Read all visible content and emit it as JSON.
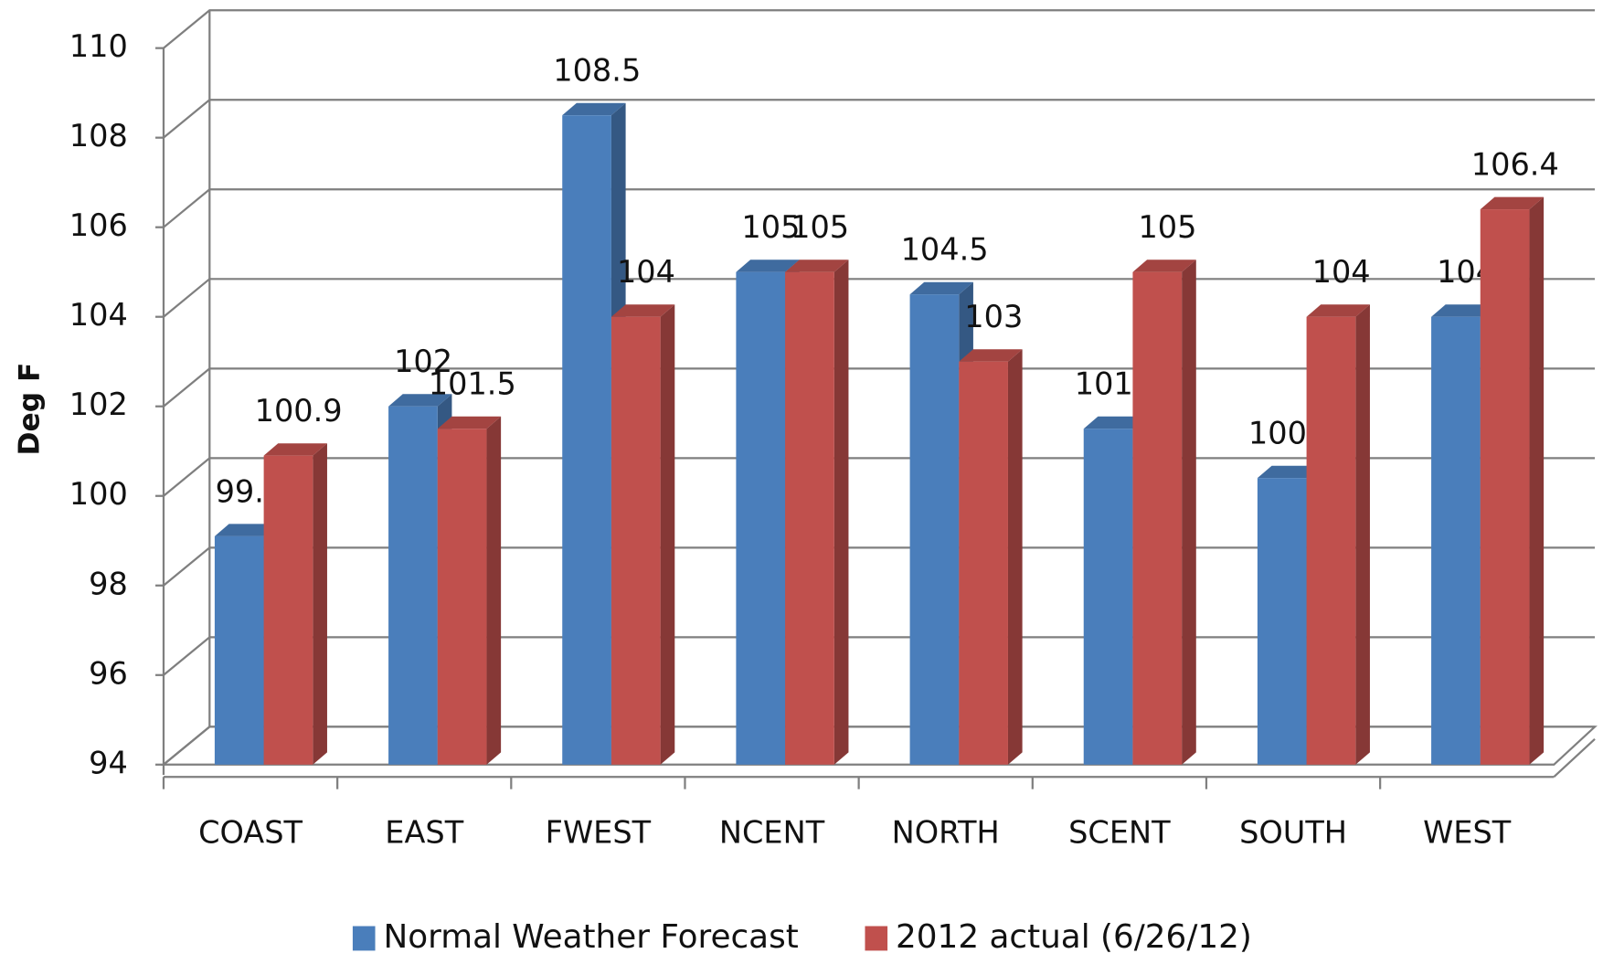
{
  "chart_data": {
    "type": "bar3d",
    "y_label": "Deg F",
    "categories": [
      "COAST",
      "EAST",
      "FWEST",
      "NCENT",
      "NORTH",
      "SCENT",
      "SOUTH",
      "WEST"
    ],
    "series": [
      {
        "name": "Normal Weather Forecast",
        "color": "#4a7ebb",
        "values": [
          99.1,
          102,
          108.5,
          105,
          104.5,
          101.5,
          100.4,
          104
        ]
      },
      {
        "name": "2012 actual (6/26/12)",
        "color": "#c0504d",
        "values": [
          100.9,
          101.5,
          104,
          105,
          103,
          105,
          104,
          106.4
        ]
      }
    ],
    "ylim": [
      94,
      110
    ],
    "yticks": [
      94,
      96,
      98,
      100,
      102,
      104,
      106,
      108,
      110
    ],
    "grid": true,
    "legend": "bottom"
  }
}
